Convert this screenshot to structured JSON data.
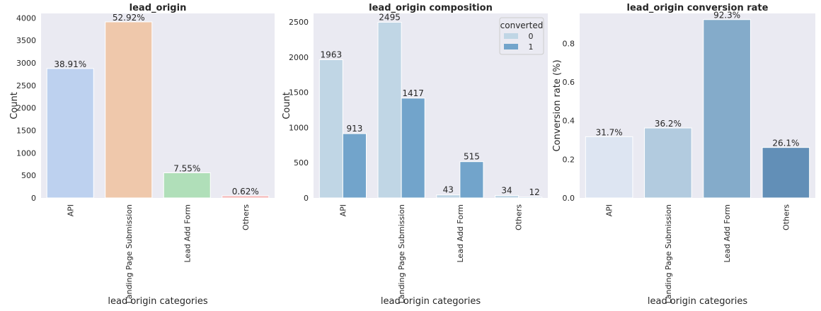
{
  "chart_data": [
    {
      "type": "bar",
      "title": "lead_origin",
      "xlabel": "lead origin categories",
      "ylabel": "Count",
      "categories": [
        "API",
        "Landing Page Submission",
        "Lead Add Form",
        "Others"
      ],
      "values": [
        2876,
        3912,
        558,
        46
      ],
      "data_labels": [
        "38.91%",
        "52.92%",
        "7.55%",
        "0.62%"
      ],
      "ylim": [
        0,
        4100
      ],
      "yticks": [
        0,
        500,
        1000,
        1500,
        2000,
        2500,
        3000,
        3500,
        4000
      ],
      "grid": false,
      "colors": [
        "#bdd1ef",
        "#efc8ab",
        "#b0dfb9",
        "#f4b0b0"
      ]
    },
    {
      "type": "bar",
      "title": "lead_origin composition",
      "xlabel": "lead origin categories",
      "ylabel": "Count",
      "categories": [
        "API",
        "Landing Page Submission",
        "Lead Add Form",
        "Others"
      ],
      "series": [
        {
          "name": "0",
          "values": [
            1963,
            2495,
            43,
            34
          ],
          "color": "#c0d6e5"
        },
        {
          "name": "1",
          "values": [
            913,
            1417,
            515,
            12
          ],
          "color": "#72a4cb"
        }
      ],
      "legend": {
        "title": "converted",
        "placement": "top-right"
      },
      "ylim": [
        0,
        2620
      ],
      "yticks": [
        0,
        500,
        1000,
        1500,
        2000,
        2500
      ],
      "grid": false
    },
    {
      "type": "bar",
      "title": "lead_origin conversion rate",
      "xlabel": "lead origin categories",
      "ylabel": "Conversion rate (%)",
      "categories": [
        "API",
        "Landing Page Submission",
        "Lead Add Form",
        "Others"
      ],
      "values": [
        0.317,
        0.362,
        0.923,
        0.261
      ],
      "data_labels": [
        "31.7%",
        "36.2%",
        "92.3%",
        "26.1%"
      ],
      "ylim": [
        0,
        0.955
      ],
      "yticks": [
        0.0,
        0.2,
        0.4,
        0.6,
        0.8
      ],
      "ytick_labels": [
        "0.0",
        "0.2",
        "0.4",
        "0.6",
        "0.8"
      ],
      "grid": false,
      "colors": [
        "#dde5f2",
        "#b2cbdf",
        "#84abca",
        "#628fb7"
      ]
    }
  ]
}
